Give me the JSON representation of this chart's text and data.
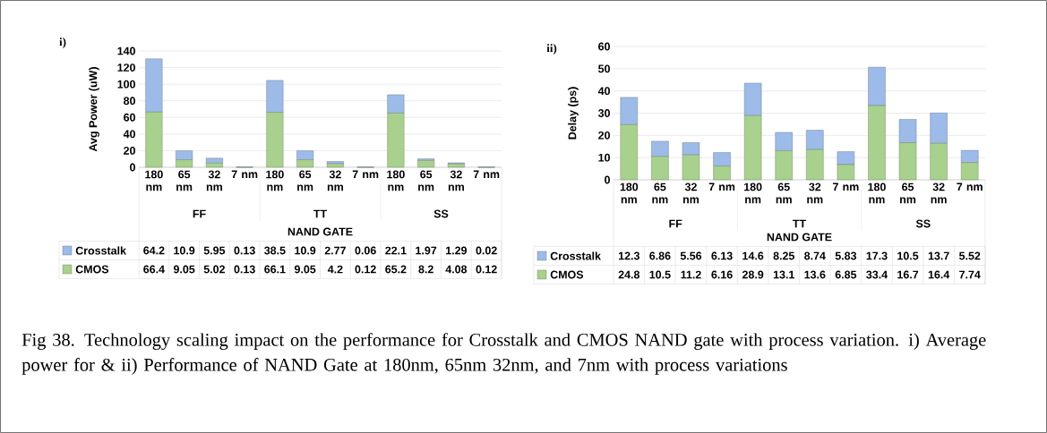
{
  "chart_data": [
    {
      "type": "bar",
      "title": "i)",
      "xlabel": "NAND GATE",
      "ylabel": "Avg Power (uW)",
      "categories": [
        "180 nm",
        "65 nm",
        "32 nm",
        "7 nm",
        "180 nm",
        "65 nm",
        "32 nm",
        "7 nm",
        "180 nm",
        "65 nm",
        "32 nm",
        "7 nm"
      ],
      "series": [
        {
          "name": "CMOS",
          "color": "#a9d18e",
          "values": [
            66.4,
            9.05,
            5.02,
            0.13,
            66.1,
            9.05,
            4.2,
            0.12,
            65.2,
            8.2,
            4.08,
            0.12
          ]
        },
        {
          "name": "Crosstalk",
          "color": "#9dbbe8",
          "values": [
            64.2,
            10.9,
            5.95,
            0.13,
            38.5,
            10.9,
            2.77,
            0.06,
            22.1,
            1.97,
            1.29,
            0.02
          ]
        }
      ],
      "stacked": true,
      "ylim": [
        0,
        140
      ],
      "yticks": [
        0,
        20,
        40,
        60,
        80,
        100,
        120,
        140
      ],
      "grid": "y",
      "legend": "bottom",
      "data_labels": true,
      "annotations": [
        "FF",
        "TT",
        "SS"
      ]
    },
    {
      "type": "bar",
      "title": "ii)",
      "xlabel": "NAND GATE",
      "ylabel": "Delay (ps)",
      "categories": [
        "180 nm",
        "65 nm",
        "32 nm",
        "7 nm",
        "180 nm",
        "65 nm",
        "32 nm",
        "7 nm",
        "180 nm",
        "65 nm",
        "32 nm",
        "7 nm"
      ],
      "series": [
        {
          "name": "CMOS",
          "color": "#a9d18e",
          "values": [
            24.8,
            10.5,
            11.2,
            6.16,
            28.9,
            13.1,
            13.6,
            6.85,
            33.4,
            16.7,
            16.4,
            7.74
          ]
        },
        {
          "name": "Crosstalk",
          "color": "#9dbbe8",
          "values": [
            12.3,
            6.86,
            5.56,
            6.13,
            14.6,
            8.25,
            8.74,
            5.83,
            17.3,
            10.5,
            13.7,
            5.52
          ]
        }
      ],
      "stacked": true,
      "ylim": [
        0,
        60
      ],
      "yticks": [
        0,
        10,
        20,
        30,
        40,
        50,
        60
      ],
      "grid": "y",
      "legend": "bottom",
      "data_labels": true,
      "annotations": [
        "FF",
        "TT",
        "SS",
        "Fig 38. Technology scaling impact on the performance for Crosstalk and CMOS NAND gate with process variation. i) Average power for & ii) Performance of NAND Gate at 180nm, 65nm 32nm, and 7nm with process variations"
      ]
    }
  ]
}
